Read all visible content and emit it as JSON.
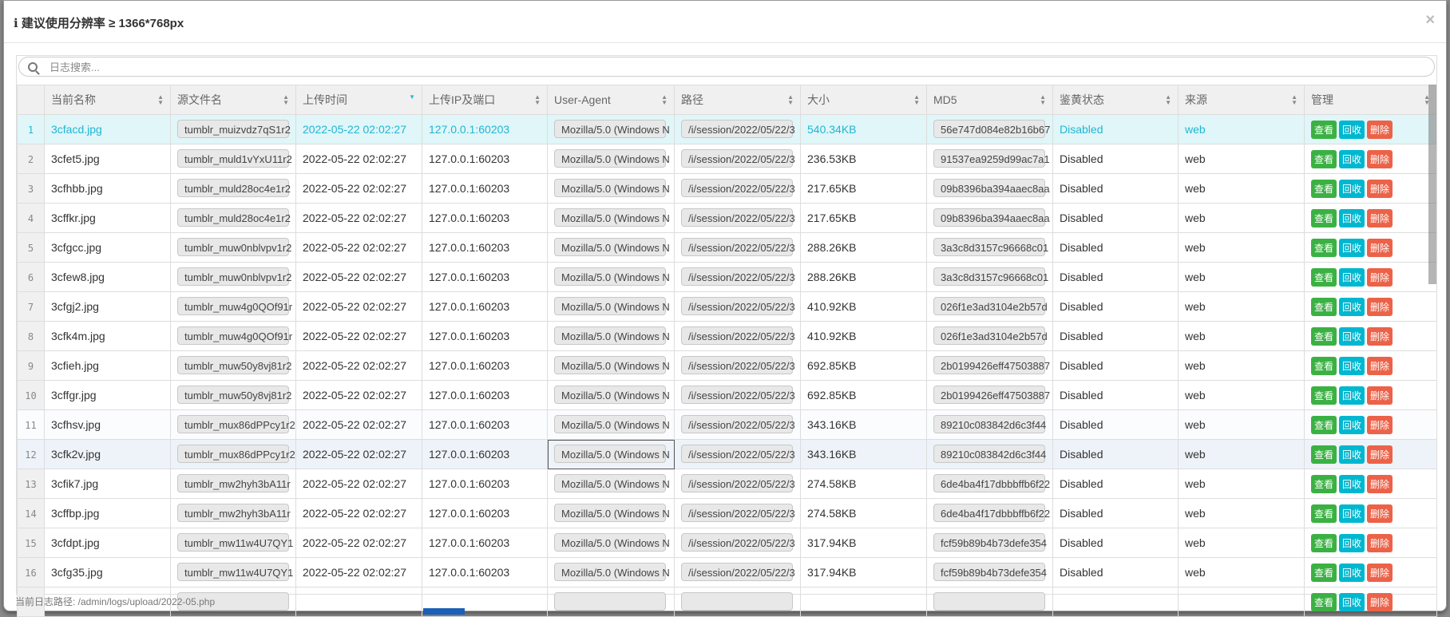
{
  "modal": {
    "title": "建议使用分辨率 ≥ 1366*768px",
    "close": "×",
    "footer": "当前日志路径: /admin/logs/upload/2022-05.php"
  },
  "search": {
    "placeholder": "日志搜索...",
    "value": ""
  },
  "columns": [
    "当前名称",
    "源文件名",
    "上传时间",
    "上传IP及端口",
    "User-Agent",
    "路径",
    "大小",
    "MD5",
    "鉴黄状态",
    "来源",
    "管理"
  ],
  "sorted_column": "上传时间",
  "sort_direction": "desc",
  "actions": {
    "view": "查看",
    "recycle": "回收",
    "delete": "删除"
  },
  "colors": {
    "selected_text": "#1fb6d3",
    "view": "#3bb143",
    "recycle": "#00b7d0",
    "delete": "#ec6248"
  },
  "selected_row": 1,
  "hover_row": 12,
  "rows": [
    {
      "n": "1",
      "name": "3cfacd.jpg",
      "src": "tumblr_muizvdz7qS1r2",
      "time": "2022-05-22 02:02:27",
      "ip": "127.0.0.1:60203",
      "ua": "Mozilla/5.0 (Windows N",
      "path": "/i/session/2022/05/22/3",
      "size": "540.34KB",
      "md5": "56e747d084e82b16b67",
      "status": "Disabled",
      "source": "web"
    },
    {
      "n": "2",
      "name": "3cfet5.jpg",
      "src": "tumblr_muld1vYxU11r2",
      "time": "2022-05-22 02:02:27",
      "ip": "127.0.0.1:60203",
      "ua": "Mozilla/5.0 (Windows N",
      "path": "/i/session/2022/05/22/3",
      "size": "236.53KB",
      "md5": "91537ea9259d99ac7a1",
      "status": "Disabled",
      "source": "web"
    },
    {
      "n": "3",
      "name": "3cfhbb.jpg",
      "src": "tumblr_muld28oc4e1r2",
      "time": "2022-05-22 02:02:27",
      "ip": "127.0.0.1:60203",
      "ua": "Mozilla/5.0 (Windows N",
      "path": "/i/session/2022/05/22/3",
      "size": "217.65KB",
      "md5": "09b8396ba394aaec8aa",
      "status": "Disabled",
      "source": "web"
    },
    {
      "n": "4",
      "name": "3cffkr.jpg",
      "src": "tumblr_muld28oc4e1r2",
      "time": "2022-05-22 02:02:27",
      "ip": "127.0.0.1:60203",
      "ua": "Mozilla/5.0 (Windows N",
      "path": "/i/session/2022/05/22/3",
      "size": "217.65KB",
      "md5": "09b8396ba394aaec8aa",
      "status": "Disabled",
      "source": "web"
    },
    {
      "n": "5",
      "name": "3cfgcc.jpg",
      "src": "tumblr_muw0nblvpv1r2",
      "time": "2022-05-22 02:02:27",
      "ip": "127.0.0.1:60203",
      "ua": "Mozilla/5.0 (Windows N",
      "path": "/i/session/2022/05/22/3",
      "size": "288.26KB",
      "md5": "3a3c8d3157c96668c01",
      "status": "Disabled",
      "source": "web"
    },
    {
      "n": "6",
      "name": "3cfew8.jpg",
      "src": "tumblr_muw0nblvpv1r2",
      "time": "2022-05-22 02:02:27",
      "ip": "127.0.0.1:60203",
      "ua": "Mozilla/5.0 (Windows N",
      "path": "/i/session/2022/05/22/3",
      "size": "288.26KB",
      "md5": "3a3c8d3157c96668c01",
      "status": "Disabled",
      "source": "web"
    },
    {
      "n": "7",
      "name": "3cfgj2.jpg",
      "src": "tumblr_muw4g0QOf91r",
      "time": "2022-05-22 02:02:27",
      "ip": "127.0.0.1:60203",
      "ua": "Mozilla/5.0 (Windows N",
      "path": "/i/session/2022/05/22/3",
      "size": "410.92KB",
      "md5": "026f1e3ad3104e2b57d",
      "status": "Disabled",
      "source": "web"
    },
    {
      "n": "8",
      "name": "3cfk4m.jpg",
      "src": "tumblr_muw4g0QOf91r",
      "time": "2022-05-22 02:02:27",
      "ip": "127.0.0.1:60203",
      "ua": "Mozilla/5.0 (Windows N",
      "path": "/i/session/2022/05/22/3",
      "size": "410.92KB",
      "md5": "026f1e3ad3104e2b57d",
      "status": "Disabled",
      "source": "web"
    },
    {
      "n": "9",
      "name": "3cfieh.jpg",
      "src": "tumblr_muw50y8vj81r2",
      "time": "2022-05-22 02:02:27",
      "ip": "127.0.0.1:60203",
      "ua": "Mozilla/5.0 (Windows N",
      "path": "/i/session/2022/05/22/3",
      "size": "692.85KB",
      "md5": "2b0199426eff47503887",
      "status": "Disabled",
      "source": "web"
    },
    {
      "n": "10",
      "name": "3cffgr.jpg",
      "src": "tumblr_muw50y8vj81r2",
      "time": "2022-05-22 02:02:27",
      "ip": "127.0.0.1:60203",
      "ua": "Mozilla/5.0 (Windows N",
      "path": "/i/session/2022/05/22/3",
      "size": "692.85KB",
      "md5": "2b0199426eff47503887",
      "status": "Disabled",
      "source": "web"
    },
    {
      "n": "11",
      "name": "3cfhsv.jpg",
      "src": "tumblr_mux86dPPcy1r2",
      "time": "2022-05-22 02:02:27",
      "ip": "127.0.0.1:60203",
      "ua": "Mozilla/5.0 (Windows N",
      "path": "/i/session/2022/05/22/3",
      "size": "343.16KB",
      "md5": "89210c083842d6c3f44",
      "status": "Disabled",
      "source": "web"
    },
    {
      "n": "12",
      "name": "3cfk2v.jpg",
      "src": "tumblr_mux86dPPcy1r2",
      "time": "2022-05-22 02:02:27",
      "ip": "127.0.0.1:60203",
      "ua": "Mozilla/5.0 (Windows N",
      "path": "/i/session/2022/05/22/3",
      "size": "343.16KB",
      "md5": "89210c083842d6c3f44",
      "status": "Disabled",
      "source": "web"
    },
    {
      "n": "13",
      "name": "3cfik7.jpg",
      "src": "tumblr_mw2hyh3bA11r",
      "time": "2022-05-22 02:02:27",
      "ip": "127.0.0.1:60203",
      "ua": "Mozilla/5.0 (Windows N",
      "path": "/i/session/2022/05/22/3",
      "size": "274.58KB",
      "md5": "6de4ba4f17dbbbffb6f22",
      "status": "Disabled",
      "source": "web"
    },
    {
      "n": "14",
      "name": "3cffbp.jpg",
      "src": "tumblr_mw2hyh3bA11r",
      "time": "2022-05-22 02:02:27",
      "ip": "127.0.0.1:60203",
      "ua": "Mozilla/5.0 (Windows N",
      "path": "/i/session/2022/05/22/3",
      "size": "274.58KB",
      "md5": "6de4ba4f17dbbbffb6f22",
      "status": "Disabled",
      "source": "web"
    },
    {
      "n": "15",
      "name": "3cfdpt.jpg",
      "src": "tumblr_mw11w4U7QY1",
      "time": "2022-05-22 02:02:27",
      "ip": "127.0.0.1:60203",
      "ua": "Mozilla/5.0 (Windows N",
      "path": "/i/session/2022/05/22/3",
      "size": "317.94KB",
      "md5": "fcf59b89b4b73defe354",
      "status": "Disabled",
      "source": "web"
    },
    {
      "n": "16",
      "name": "3cfg35.jpg",
      "src": "tumblr_mw11w4U7QY1",
      "time": "2022-05-22 02:02:27",
      "ip": "127.0.0.1:60203",
      "ua": "Mozilla/5.0 (Windows N",
      "path": "/i/session/2022/05/22/3",
      "size": "317.94KB",
      "md5": "fcf59b89b4b73defe354",
      "status": "Disabled",
      "source": "web"
    }
  ]
}
